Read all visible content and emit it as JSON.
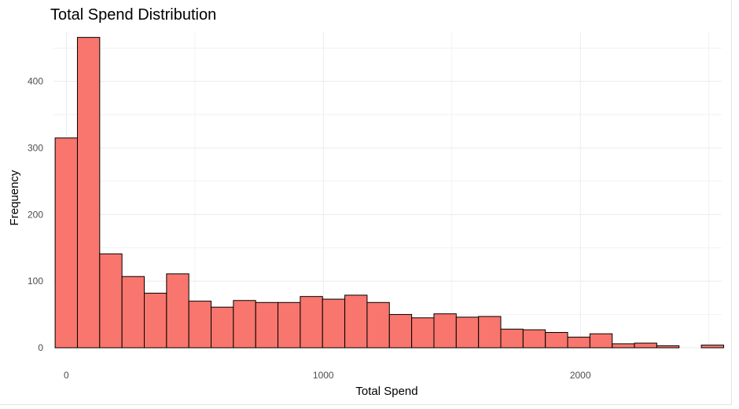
{
  "chart_data": {
    "type": "bar",
    "title": "Total Spend Distribution",
    "xlabel": "Total Spend",
    "ylabel": "Frequency",
    "xlim": [
      -50,
      2550
    ],
    "ylim": [
      0,
      475
    ],
    "x_ticks": [
      0,
      1000,
      2000
    ],
    "y_ticks": [
      0,
      100,
      200,
      300,
      400
    ],
    "bin_width": 86.7,
    "bin_start": -43.5,
    "grid": true,
    "bar_color": "#F8766D",
    "bar_border_color": "#000000",
    "values": [
      315,
      466,
      141,
      107,
      82,
      111,
      70,
      61,
      71,
      68,
      68,
      77,
      73,
      79,
      68,
      50,
      45,
      51,
      46,
      47,
      28,
      27,
      23,
      16,
      21,
      6,
      7,
      3,
      0,
      4
    ]
  }
}
